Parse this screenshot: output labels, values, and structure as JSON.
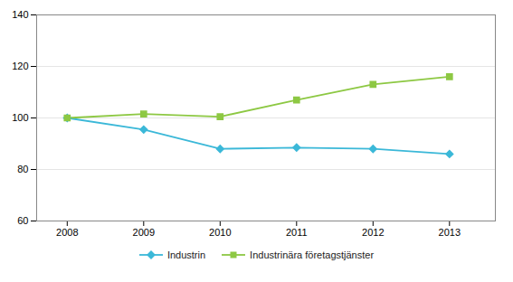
{
  "chart_data": {
    "type": "line",
    "x": [
      2008,
      2009,
      2010,
      2011,
      2012,
      2013
    ],
    "series": [
      {
        "name": "Industrin",
        "color": "#3bb8d8",
        "marker": "diamond",
        "values": [
          100,
          95.5,
          88,
          88.5,
          88,
          86
        ]
      },
      {
        "name": "Industrinära företagstjänster",
        "color": "#8dc843",
        "marker": "square",
        "values": [
          100,
          101.5,
          100.5,
          107,
          113,
          116
        ]
      }
    ],
    "xlim": [
      2007.6,
      2013.6
    ],
    "xticks": [
      2008,
      2009,
      2010,
      2011,
      2012,
      2013
    ],
    "ylim": [
      60,
      140
    ],
    "yticks": [
      60,
      80,
      100,
      120,
      140
    ],
    "grid": true,
    "legend": "bottom"
  }
}
